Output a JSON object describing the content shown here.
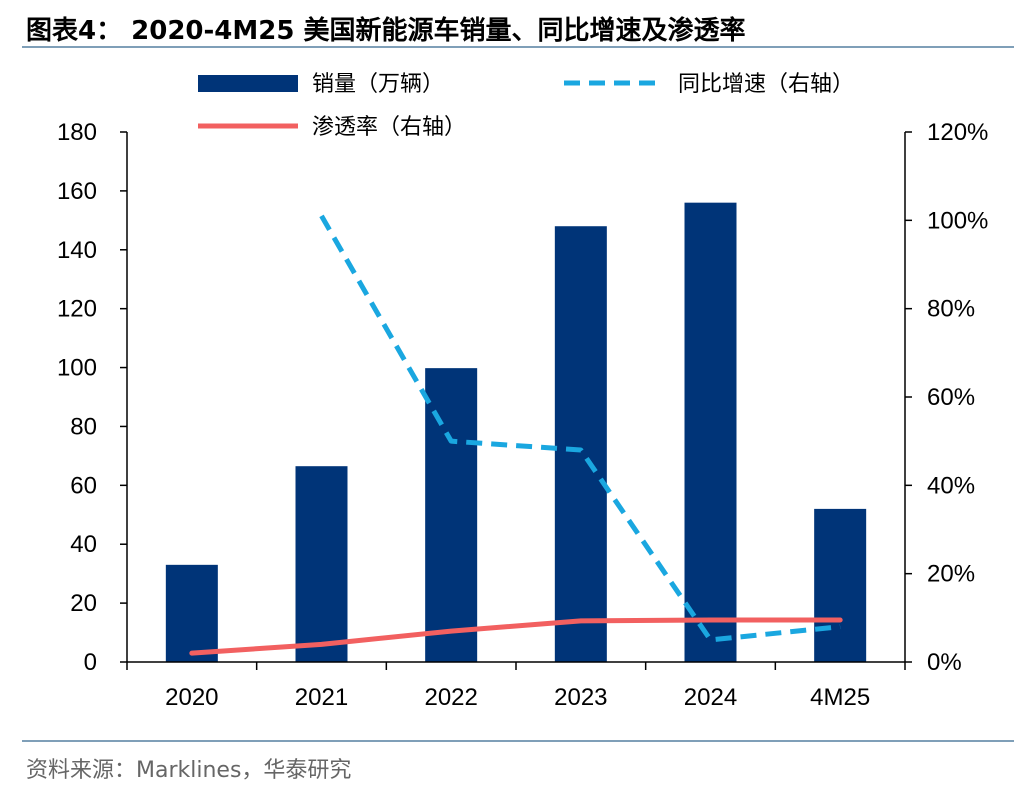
{
  "header": {
    "title": "图表4：  2020-4M25 美国新能源车销量、同比增速及渗透率"
  },
  "footer": {
    "source": "资料来源：Marklines，华泰研究"
  },
  "colors": {
    "bar": "#003478",
    "yoy": "#1AA7E0",
    "penetration": "#F26060",
    "axis": "#000000"
  },
  "chart_data": {
    "type": "bar",
    "categories": [
      "2020",
      "2021",
      "2022",
      "2023",
      "2024",
      "4M25"
    ],
    "series": [
      {
        "name": "销量（万辆）",
        "type": "bar",
        "axis": "left",
        "values": [
          33,
          66.5,
          99.8,
          148,
          156,
          52
        ]
      },
      {
        "name": "同比增速（右轴）",
        "type": "line",
        "style": "dashed",
        "axis": "right",
        "values": [
          null,
          1.01,
          0.5,
          0.48,
          0.05,
          0.08
        ]
      },
      {
        "name": "渗透率（右轴）",
        "type": "line",
        "style": "solid",
        "axis": "right",
        "values": [
          0.02,
          0.04,
          0.07,
          0.093,
          0.095,
          0.095
        ]
      }
    ],
    "left_axis": {
      "ylim": [
        0,
        180
      ],
      "ticks": [
        "0",
        "20",
        "40",
        "60",
        "80",
        "100",
        "120",
        "140",
        "160",
        "180"
      ]
    },
    "right_axis": {
      "ylim": [
        0,
        1.2
      ],
      "ticks": [
        "0%",
        "20%",
        "40%",
        "60%",
        "80%",
        "100%",
        "120%"
      ]
    },
    "grid": false,
    "legend": "top"
  }
}
